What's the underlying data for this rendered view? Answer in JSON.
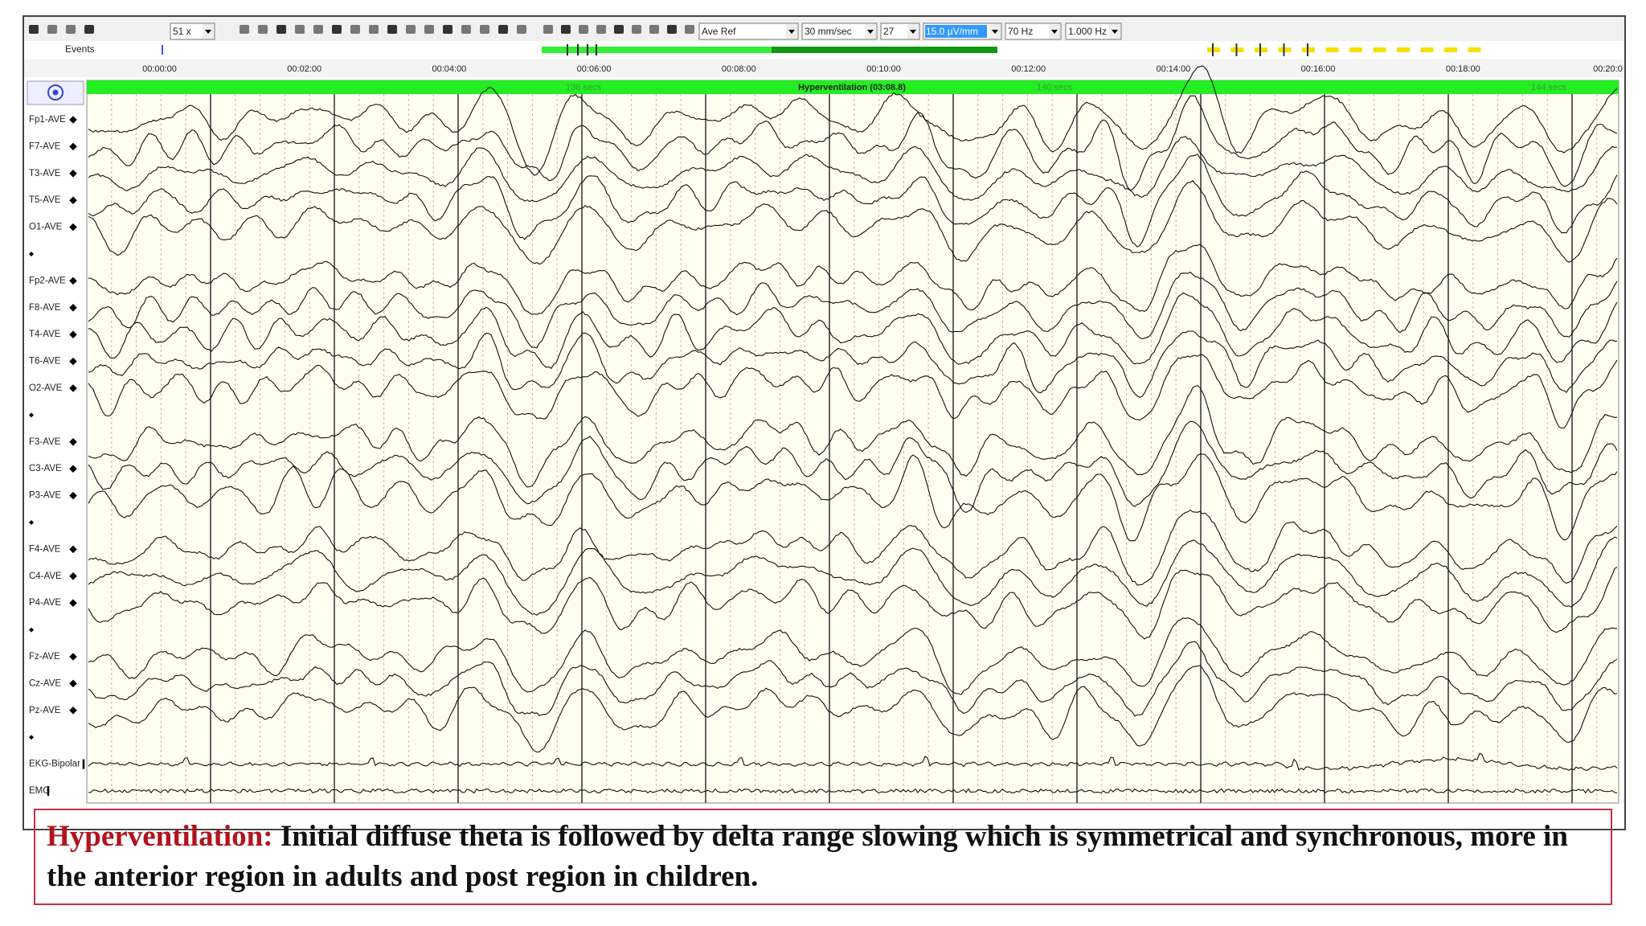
{
  "toolbar": {
    "zoom": "51 x",
    "montage": "Ave Ref",
    "speed": "30 mm/sec",
    "channels": "27",
    "sensitivity": "15.0 µV/mm",
    "high_filter": "70 Hz",
    "low_filter": "1.000 Hz"
  },
  "events_label": "Events",
  "time_labels": [
    "00:00:00",
    "00:02:00",
    "00:04:00",
    "00:06:00",
    "00:08:00",
    "00:10:00",
    "00:12:00",
    "00:14:00",
    "00:16:00",
    "00:18:00",
    "00:20:0"
  ],
  "header_bar": {
    "marks": [
      "136 secs",
      "Hyperventilation (03:08.8)",
      "140 secs",
      "144 secs"
    ]
  },
  "channel_groups": [
    [
      "Fp1-AVE",
      "F7-AVE",
      "T3-AVE",
      "T5-AVE",
      "O1-AVE"
    ],
    [
      "Fp2-AVE",
      "F8-AVE",
      "T4-AVE",
      "T6-AVE",
      "O2-AVE"
    ],
    [
      "F3-AVE",
      "C3-AVE",
      "P3-AVE"
    ],
    [
      "F4-AVE",
      "C4-AVE",
      "P4-AVE"
    ],
    [
      "Fz-AVE",
      "Cz-AVE",
      "Pz-AVE"
    ],
    [
      "EKG-Bipolar",
      "EMG"
    ]
  ],
  "caption": {
    "label": "Hyperventilation:",
    "text": "Initial diffuse theta is followed by delta range slowing which is symmetrical and synchronous, more in the anterior region in adults and post region in children."
  }
}
